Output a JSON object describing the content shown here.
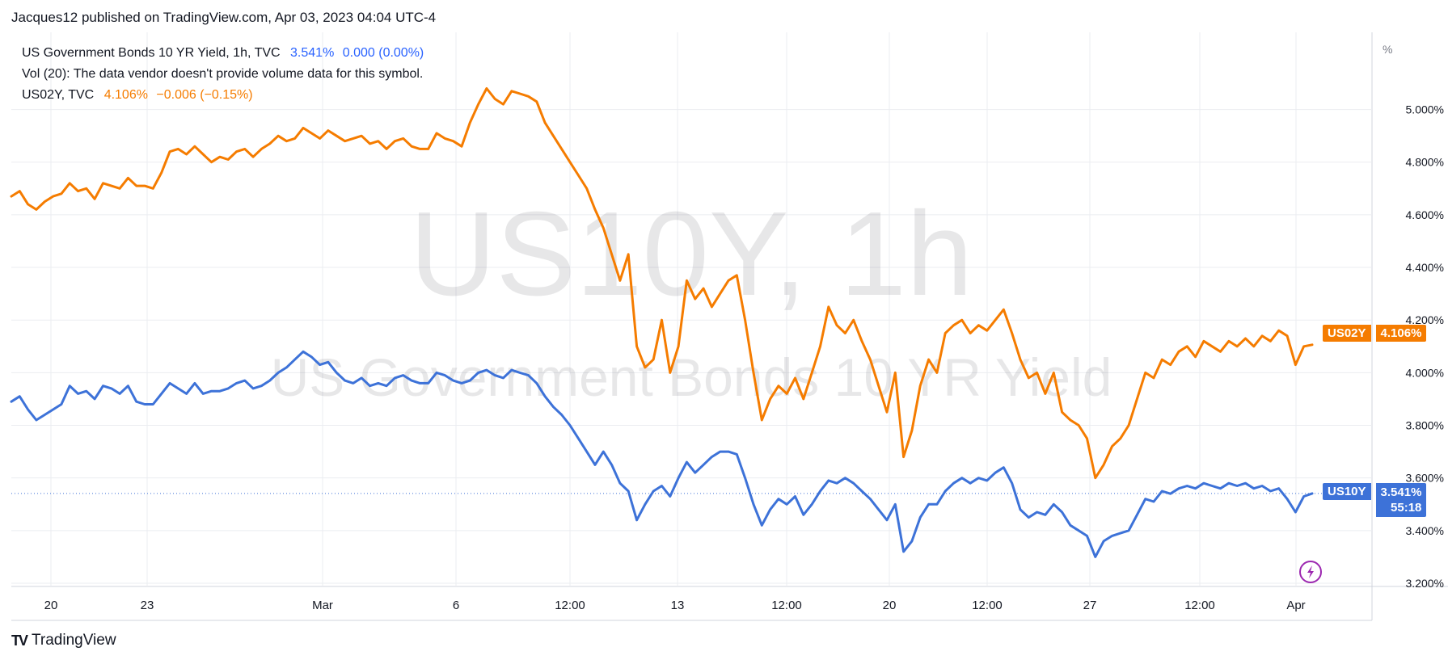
{
  "header": {
    "caption": "Jacques12 published on TradingView.com, Apr 03, 2023 04:04 UTC-4"
  },
  "legend": {
    "row1_name": "US Government Bonds 10 YR Yield, 1h, TVC",
    "row1_value": "3.541%",
    "row1_change": "0.000 (0.00%)",
    "row2_text": "Vol (20): The data vendor doesn't provide volume data for this symbol.",
    "row3_name": "US02Y, TVC",
    "row3_value": "4.106%",
    "row3_change": "−0.006 (−0.15%)"
  },
  "watermark": {
    "symbol": "US10Y, 1h",
    "description": "US Government Bonds 10 YR Yield"
  },
  "axis_badges": {
    "us02y_label": "US02Y",
    "us02y_value": "4.106%",
    "us10y_label": "US10Y",
    "us10y_value": "3.541%",
    "us10y_countdown": "55:18"
  },
  "footer": {
    "brand": "TradingView"
  },
  "colors": {
    "us10y": "#3d72d8",
    "us02y": "#f57c00",
    "grid": "#ebedf1",
    "axis": "#787b86"
  },
  "icons": {
    "replay": "lightning-icon"
  },
  "chart_data": {
    "type": "line",
    "y_unit": "%",
    "ylim": [
      3.2,
      5.1
    ],
    "y_ticks": [
      "5.000%",
      "4.800%",
      "4.600%",
      "4.400%",
      "4.200%",
      "4.000%",
      "3.800%",
      "3.600%",
      "3.400%",
      "3.200%"
    ],
    "x_ticks": [
      "20",
      "23",
      "Mar",
      "6",
      "12:00",
      "13",
      "12:00",
      "20",
      "12:00",
      "27",
      "12:00",
      "Apr"
    ],
    "grid": true,
    "series": [
      {
        "name": "US02Y",
        "color": "#f57c00",
        "values": [
          4.67,
          4.69,
          4.64,
          4.62,
          4.65,
          4.67,
          4.68,
          4.72,
          4.69,
          4.7,
          4.66,
          4.72,
          4.71,
          4.7,
          4.74,
          4.71,
          4.71,
          4.7,
          4.76,
          4.84,
          4.85,
          4.83,
          4.86,
          4.83,
          4.8,
          4.82,
          4.81,
          4.84,
          4.85,
          4.82,
          4.85,
          4.87,
          4.9,
          4.88,
          4.89,
          4.93,
          4.91,
          4.89,
          4.92,
          4.9,
          4.88,
          4.89,
          4.9,
          4.87,
          4.88,
          4.85,
          4.88,
          4.89,
          4.86,
          4.85,
          4.85,
          4.91,
          4.89,
          4.88,
          4.86,
          4.95,
          5.02,
          5.08,
          5.04,
          5.02,
          5.07,
          5.06,
          5.05,
          5.03,
          4.95,
          4.9,
          4.85,
          4.8,
          4.75,
          4.7,
          4.62,
          4.55,
          4.45,
          4.35,
          4.45,
          4.1,
          4.02,
          4.05,
          4.2,
          4.0,
          4.1,
          4.35,
          4.28,
          4.32,
          4.25,
          4.3,
          4.35,
          4.37,
          4.2,
          4.0,
          3.82,
          3.9,
          3.95,
          3.92,
          3.98,
          3.9,
          4.0,
          4.1,
          4.25,
          4.18,
          4.15,
          4.2,
          4.12,
          4.05,
          3.95,
          3.85,
          4.0,
          3.68,
          3.78,
          3.95,
          4.05,
          4.0,
          4.15,
          4.18,
          4.2,
          4.15,
          4.18,
          4.16,
          4.2,
          4.24,
          4.15,
          4.05,
          3.98,
          4.0,
          3.92,
          4.0,
          3.85,
          3.82,
          3.8,
          3.75,
          3.6,
          3.65,
          3.72,
          3.75,
          3.8,
          3.9,
          4.0,
          3.98,
          4.05,
          4.03,
          4.08,
          4.1,
          4.06,
          4.12,
          4.1,
          4.08,
          4.12,
          4.1,
          4.13,
          4.1,
          4.14,
          4.12,
          4.16,
          4.14,
          4.03,
          4.1,
          4.106
        ]
      },
      {
        "name": "US10Y",
        "color": "#3d72d8",
        "values": [
          3.89,
          3.91,
          3.86,
          3.82,
          3.84,
          3.86,
          3.88,
          3.95,
          3.92,
          3.93,
          3.9,
          3.95,
          3.94,
          3.92,
          3.95,
          3.89,
          3.88,
          3.88,
          3.92,
          3.96,
          3.94,
          3.92,
          3.96,
          3.92,
          3.93,
          3.93,
          3.94,
          3.96,
          3.97,
          3.94,
          3.95,
          3.97,
          4.0,
          4.02,
          4.05,
          4.08,
          4.06,
          4.03,
          4.04,
          4.0,
          3.97,
          3.96,
          3.98,
          3.95,
          3.96,
          3.95,
          3.98,
          3.99,
          3.97,
          3.96,
          3.96,
          4.0,
          3.99,
          3.97,
          3.96,
          3.97,
          4.0,
          4.01,
          3.99,
          3.98,
          4.01,
          4.0,
          3.99,
          3.96,
          3.91,
          3.87,
          3.84,
          3.8,
          3.75,
          3.7,
          3.65,
          3.7,
          3.65,
          3.58,
          3.55,
          3.44,
          3.5,
          3.55,
          3.57,
          3.53,
          3.6,
          3.66,
          3.62,
          3.65,
          3.68,
          3.7,
          3.7,
          3.69,
          3.6,
          3.5,
          3.42,
          3.48,
          3.52,
          3.5,
          3.53,
          3.46,
          3.5,
          3.55,
          3.59,
          3.58,
          3.6,
          3.58,
          3.55,
          3.52,
          3.48,
          3.44,
          3.5,
          3.32,
          3.36,
          3.45,
          3.5,
          3.5,
          3.55,
          3.58,
          3.6,
          3.58,
          3.6,
          3.59,
          3.62,
          3.64,
          3.58,
          3.48,
          3.45,
          3.47,
          3.46,
          3.5,
          3.47,
          3.42,
          3.4,
          3.38,
          3.3,
          3.36,
          3.38,
          3.39,
          3.4,
          3.46,
          3.52,
          3.51,
          3.55,
          3.54,
          3.56,
          3.57,
          3.56,
          3.58,
          3.57,
          3.56,
          3.58,
          3.57,
          3.58,
          3.56,
          3.57,
          3.55,
          3.56,
          3.52,
          3.47,
          3.53,
          3.541
        ]
      }
    ]
  }
}
